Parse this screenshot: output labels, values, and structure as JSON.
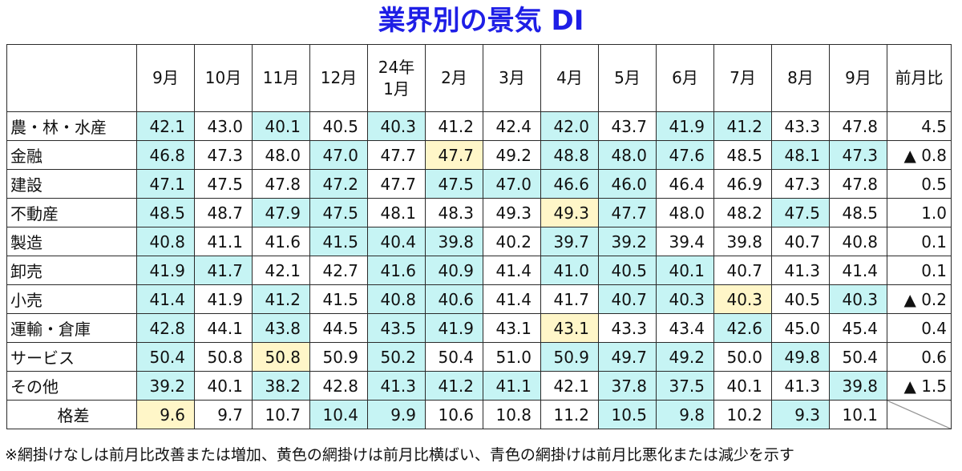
{
  "title": "業界別の景気 DI",
  "note": "※網掛けなしは前月比改善または増加、黄色の網掛けは前月比横ばい、青色の網掛けは前月比悪化または減少を示す",
  "colors": {
    "title": "#1e1ee6",
    "same_shade": "#fff6c8",
    "worse_shade": "#c6f4f4"
  },
  "chart_data": {
    "type": "table",
    "title": "業界別の景気 DI",
    "columns": [
      "9月",
      "10月",
      "11月",
      "12月",
      "24年\n1月",
      "2月",
      "3月",
      "4月",
      "5月",
      "6月",
      "7月",
      "8月",
      "9月"
    ],
    "diff_header": "前月比",
    "rows": [
      {
        "category": "農・林・水産",
        "values": [
          "42.1",
          "43.0",
          "40.1",
          "40.5",
          "40.3",
          "41.2",
          "42.4",
          "42.0",
          "43.7",
          "41.9",
          "41.2",
          "43.3",
          "47.8"
        ],
        "shade": [
          "w",
          "",
          "w",
          "",
          "w",
          "",
          "",
          "w",
          "",
          "w",
          "w",
          "",
          ""
        ],
        "diff": "4.5"
      },
      {
        "category": "金融",
        "values": [
          "46.8",
          "47.3",
          "48.0",
          "47.0",
          "47.7",
          "47.7",
          "49.2",
          "48.8",
          "48.0",
          "47.6",
          "48.5",
          "48.1",
          "47.3"
        ],
        "shade": [
          "w",
          "",
          "",
          "w",
          "",
          "s",
          "",
          "w",
          "w",
          "w",
          "",
          "w",
          "w"
        ],
        "diff": "▲ 0.8"
      },
      {
        "category": "建設",
        "values": [
          "47.1",
          "47.5",
          "47.8",
          "47.2",
          "47.7",
          "47.5",
          "47.0",
          "46.6",
          "46.0",
          "46.4",
          "46.9",
          "47.3",
          "47.8"
        ],
        "shade": [
          "w",
          "",
          "",
          "w",
          "",
          "w",
          "w",
          "w",
          "w",
          "",
          "",
          "",
          ""
        ],
        "diff": "0.5"
      },
      {
        "category": "不動産",
        "values": [
          "48.5",
          "48.7",
          "47.9",
          "47.5",
          "48.1",
          "48.3",
          "49.3",
          "49.3",
          "47.7",
          "48.0",
          "48.2",
          "47.5",
          "48.5"
        ],
        "shade": [
          "w",
          "",
          "w",
          "w",
          "",
          "",
          "",
          "s",
          "w",
          "",
          "",
          "w",
          ""
        ],
        "diff": "1.0"
      },
      {
        "category": "製造",
        "values": [
          "40.8",
          "41.1",
          "41.6",
          "41.5",
          "40.4",
          "39.8",
          "40.2",
          "39.7",
          "39.2",
          "39.4",
          "39.8",
          "40.7",
          "40.8"
        ],
        "shade": [
          "w",
          "",
          "",
          "w",
          "w",
          "w",
          "",
          "w",
          "w",
          "",
          "",
          "",
          ""
        ],
        "diff": "0.1"
      },
      {
        "category": "卸売",
        "values": [
          "41.9",
          "41.7",
          "42.1",
          "42.7",
          "41.6",
          "40.9",
          "41.4",
          "41.0",
          "40.5",
          "40.1",
          "40.7",
          "41.3",
          "41.4"
        ],
        "shade": [
          "w",
          "w",
          "",
          "",
          "w",
          "w",
          "",
          "w",
          "w",
          "w",
          "",
          "",
          ""
        ],
        "diff": "0.1"
      },
      {
        "category": "小売",
        "values": [
          "41.4",
          "41.9",
          "41.2",
          "41.5",
          "40.8",
          "40.6",
          "41.4",
          "41.7",
          "40.7",
          "40.3",
          "40.3",
          "40.5",
          "40.3"
        ],
        "shade": [
          "w",
          "",
          "w",
          "",
          "w",
          "w",
          "",
          "",
          "w",
          "w",
          "s",
          "",
          "w"
        ],
        "diff": "▲ 0.2"
      },
      {
        "category": "運輸・倉庫",
        "values": [
          "42.8",
          "44.1",
          "43.8",
          "44.5",
          "43.5",
          "41.9",
          "43.1",
          "43.1",
          "43.3",
          "43.4",
          "42.6",
          "45.0",
          "45.4"
        ],
        "shade": [
          "w",
          "",
          "w",
          "",
          "w",
          "w",
          "",
          "s",
          "",
          "",
          "w",
          "",
          ""
        ],
        "diff": "0.4"
      },
      {
        "category": "サービス",
        "values": [
          "50.4",
          "50.8",
          "50.8",
          "50.9",
          "50.2",
          "50.4",
          "51.0",
          "50.9",
          "49.7",
          "49.2",
          "50.0",
          "49.8",
          "50.4"
        ],
        "shade": [
          "w",
          "",
          "s",
          "",
          "w",
          "",
          "",
          "w",
          "w",
          "w",
          "",
          "w",
          ""
        ],
        "diff": "0.6"
      },
      {
        "category": "その他",
        "values": [
          "39.2",
          "40.1",
          "38.2",
          "42.8",
          "41.3",
          "41.2",
          "41.1",
          "42.1",
          "37.8",
          "37.5",
          "40.1",
          "41.3",
          "39.8"
        ],
        "shade": [
          "w",
          "",
          "w",
          "",
          "w",
          "w",
          "w",
          "",
          "w",
          "w",
          "",
          "",
          "w"
        ],
        "diff": "▲ 1.5"
      }
    ],
    "spread_row": {
      "label": "格差",
      "values": [
        "9.6",
        "9.7",
        "10.7",
        "10.4",
        "9.9",
        "10.6",
        "10.8",
        "11.2",
        "10.5",
        "9.8",
        "10.2",
        "9.3",
        "10.1"
      ],
      "shade": [
        "s",
        "",
        "",
        "w",
        "w",
        "",
        "",
        "",
        "w",
        "w",
        "",
        "w",
        ""
      ]
    }
  }
}
